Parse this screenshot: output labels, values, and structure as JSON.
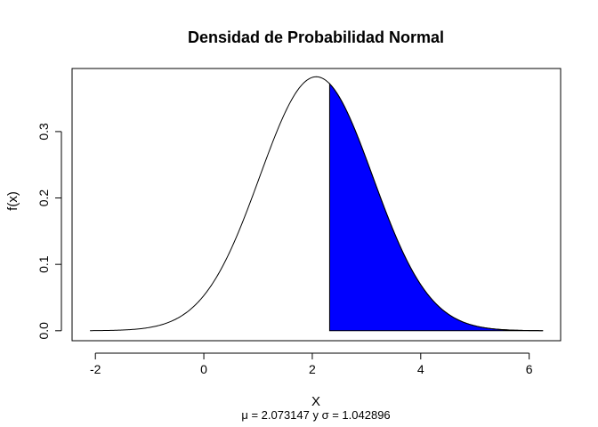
{
  "chart_data": {
    "type": "area",
    "title": "Densidad de Probabilidad Normal",
    "xlabel": "X",
    "ylabel": "f(x)",
    "subtitle": "μ = 2.073147 y σ = 1.042896",
    "distribution": {
      "name": "normal",
      "mean": 2.073147,
      "sd": 1.042896
    },
    "x_range": [
      -2.1,
      6.25
    ],
    "xlim": [
      -2.43,
      6.58
    ],
    "ylim": [
      -0.015,
      0.395
    ],
    "x_ticks": [
      -2,
      0,
      2,
      4,
      6
    ],
    "x_tick_labels": [
      "-2",
      "0",
      "2",
      "4",
      "6"
    ],
    "y_ticks": [
      0.0,
      0.1,
      0.2,
      0.3
    ],
    "y_tick_labels": [
      "0.0",
      "0.1",
      "0.2",
      "0.3"
    ],
    "shaded_region": {
      "from": 2.32,
      "to": 6.25,
      "color": "#0000ff"
    },
    "curve_color": "#000000",
    "grid": false,
    "legend": "none"
  }
}
